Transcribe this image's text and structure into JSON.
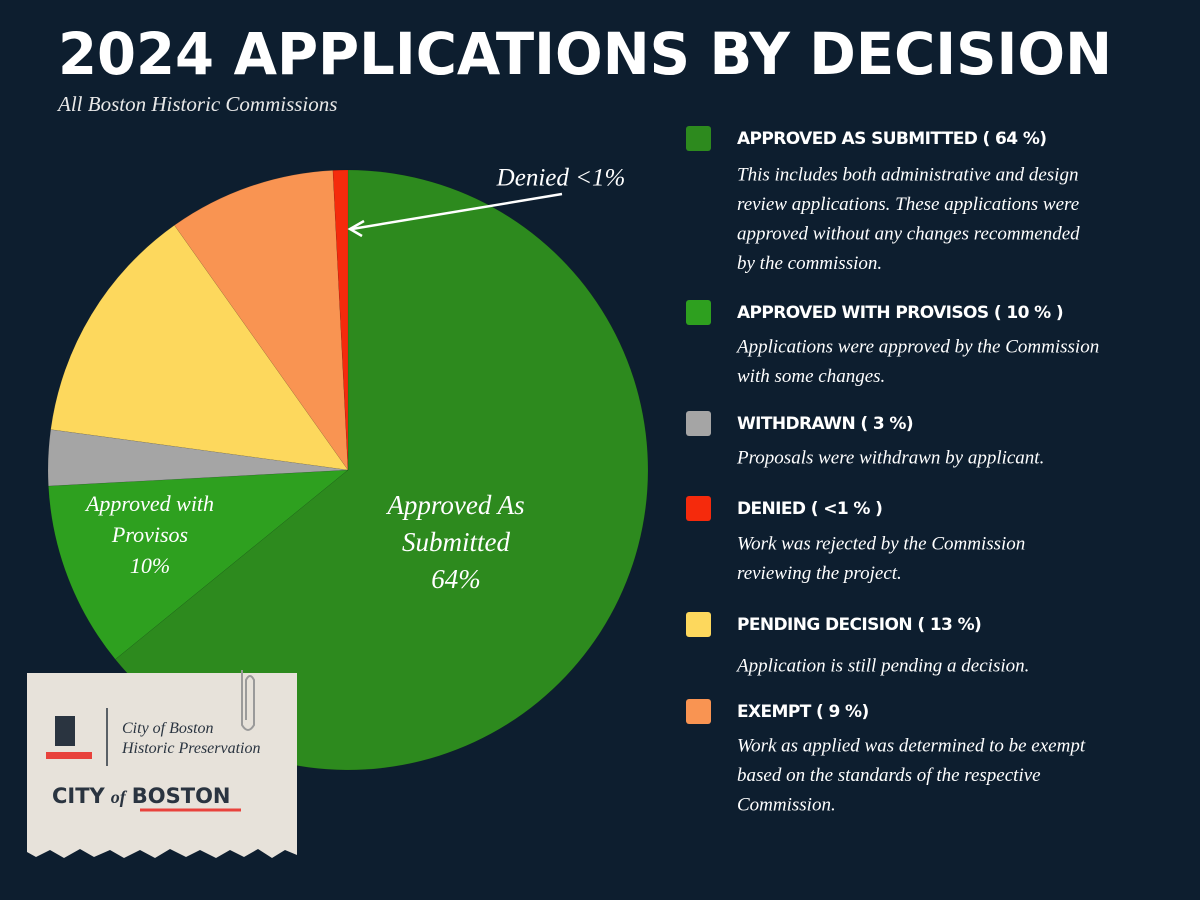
{
  "chart_data": {
    "type": "pie",
    "title": "2024 APPLICATIONS BY DECISION",
    "subtitle": "All Boston Historic Commissions",
    "categories": [
      "APPROVED AS SUBMITTED ( 64 %)",
      "APPROVED WITH PROVISOS ( 10 % )",
      "WITHDRAWN ( 3 %)",
      "PENDING DECISION ( 13 %)",
      "EXEMPT ( 9 %)",
      "DENIED ( <1 % )"
    ],
    "values": [
      64,
      10,
      3,
      13,
      9,
      0.8
    ],
    "colors": [
      "#2d8a1e",
      "#2ea01f",
      "#a5a5a5",
      "#fdd85d",
      "#f99452",
      "#f52a0c"
    ],
    "value_labels": [
      [
        "Approved As",
        "Submitted",
        "64%"
      ],
      [
        "Approved with",
        "Provisos",
        "10%"
      ],
      null,
      null,
      null,
      [
        "Denied <1%"
      ]
    ],
    "descriptions": [
      [
        "This includes both administrative and design",
        "review applications. These applications were",
        "approved without any changes recommended",
        "by the commission."
      ],
      [
        "Applications were approved by the Commission",
        "with some changes."
      ],
      [
        "Proposals were withdrawn by applicant."
      ],
      [
        "Application is still pending a decision."
      ],
      [
        "Work as applied was determined to be exempt",
        "based on the standards of the respective",
        "Commission."
      ],
      [
        "Work was rejected by the Commission",
        "reviewing the project."
      ]
    ]
  },
  "logo": {
    "line1": "City of Boston",
    "line2": "Historic Preservation",
    "wordmark": [
      "CITY",
      "of",
      "BOSTON"
    ]
  }
}
